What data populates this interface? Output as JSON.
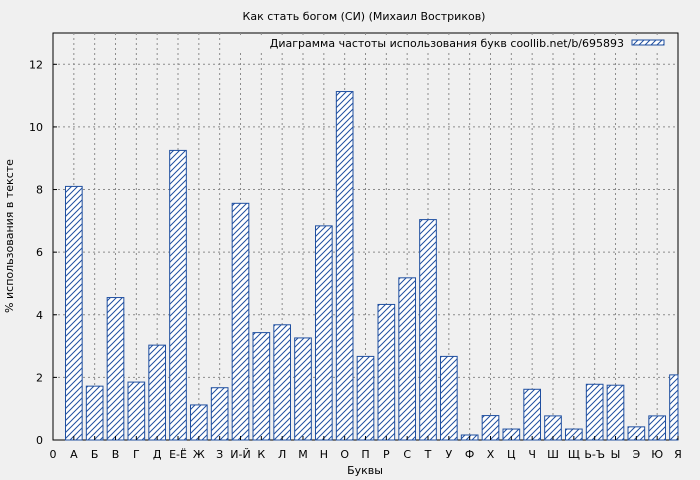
{
  "chart_data": {
    "type": "bar",
    "title": "Как стать богом (СИ) (Михаил Востриков)",
    "xlabel": "Буквы",
    "ylabel": "% использования в тексте",
    "legend": {
      "label": "Диаграмма частоты использования букв coollib.net/b/695893",
      "placement": "top-right"
    },
    "x_origin_label": "0",
    "categories": [
      "А",
      "Б",
      "В",
      "Г",
      "Д",
      "Е-Ё",
      "Ж",
      "З",
      "И-Й",
      "К",
      "Л",
      "М",
      "Н",
      "О",
      "П",
      "Р",
      "С",
      "Т",
      "У",
      "Ф",
      "Х",
      "Ц",
      "Ч",
      "Ш",
      "Щ",
      "Ь-Ъ",
      "Ы",
      "Э",
      "Ю",
      "Я"
    ],
    "values": [
      8.1,
      1.72,
      4.55,
      1.85,
      3.03,
      9.25,
      1.12,
      1.67,
      7.56,
      3.43,
      3.68,
      3.26,
      6.84,
      11.13,
      2.67,
      4.33,
      5.18,
      7.04,
      2.67,
      0.16,
      0.78,
      0.35,
      1.62,
      0.77,
      0.35,
      1.78,
      1.75,
      0.42,
      0.77,
      2.08
    ],
    "ylim": [
      0,
      13
    ],
    "yticks": [
      0,
      2,
      4,
      6,
      8,
      10,
      12
    ],
    "grid": true,
    "colors": {
      "bar_stroke": "#1f4fa0",
      "hatch": "#1f4fa0",
      "bar_fill": "#ffffff",
      "plot_background": "#f0f0f0",
      "grid": "#8c8c8c"
    }
  }
}
